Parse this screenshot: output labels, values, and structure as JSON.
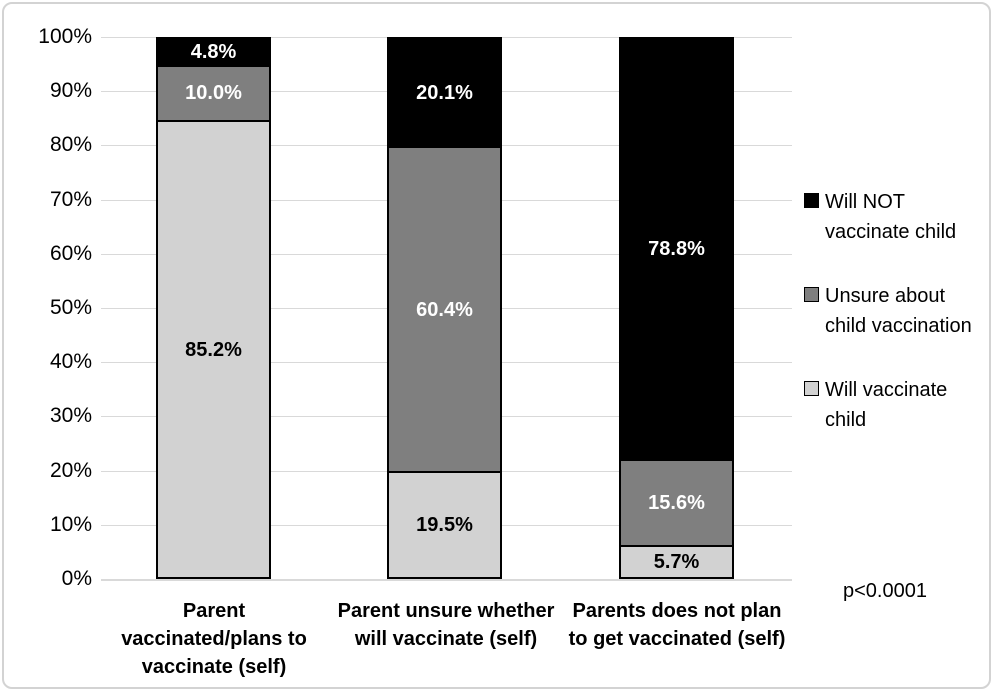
{
  "chart_data": {
    "type": "bar",
    "stacked": true,
    "title": "",
    "xlabel": "",
    "ylabel": "",
    "ylim": [
      0,
      100
    ],
    "grid": true,
    "legend_position": "right",
    "annotation": "p<0.0001",
    "y_ticks": [
      "100%",
      "90%",
      "80%",
      "70%",
      "60%",
      "50%",
      "40%",
      "30%",
      "20%",
      "10%",
      "0%"
    ],
    "categories": [
      {
        "label": "Parent vaccinated/plans to vaccinate (self)",
        "lines": [
          "Parent",
          "vaccinated/plans to",
          "vaccinate (self)"
        ]
      },
      {
        "label": "Parent unsure whether will vaccinate (self)",
        "lines": [
          "Parent unsure whether",
          "will vaccinate (self)"
        ]
      },
      {
        "label": "Parents does not plan to get vaccinated (self)",
        "lines": [
          "Parents does not plan",
          "to get vaccinated (self)"
        ]
      }
    ],
    "series": [
      {
        "name": "Will NOT vaccinate child",
        "legend_lines": [
          "Will NOT",
          "vaccinate child"
        ],
        "color": "#000000",
        "label_color": "#ffffff",
        "values": [
          4.8,
          20.1,
          78.8
        ],
        "labels": [
          "4.8%",
          "20.1%",
          "78.8%"
        ]
      },
      {
        "name": "Unsure about child vaccination",
        "legend_lines": [
          "Unsure about",
          "child vaccination"
        ],
        "color": "#7f7f7f",
        "label_color": "#ffffff",
        "values": [
          10.0,
          60.4,
          15.6
        ],
        "labels": [
          "10.0%",
          "60.4%",
          "15.6%"
        ]
      },
      {
        "name": "Will vaccinate child",
        "legend_lines": [
          "Will vaccinate",
          "child"
        ],
        "color": "#d2d2d2",
        "label_color": "#000000",
        "values": [
          85.2,
          19.5,
          5.7
        ],
        "labels": [
          "85.2%",
          "19.5%",
          "5.7%"
        ]
      }
    ],
    "colors": {
      "gridline": "#d9d9d9",
      "frame_border": "#d3d3d3",
      "background": "#ffffff"
    }
  }
}
